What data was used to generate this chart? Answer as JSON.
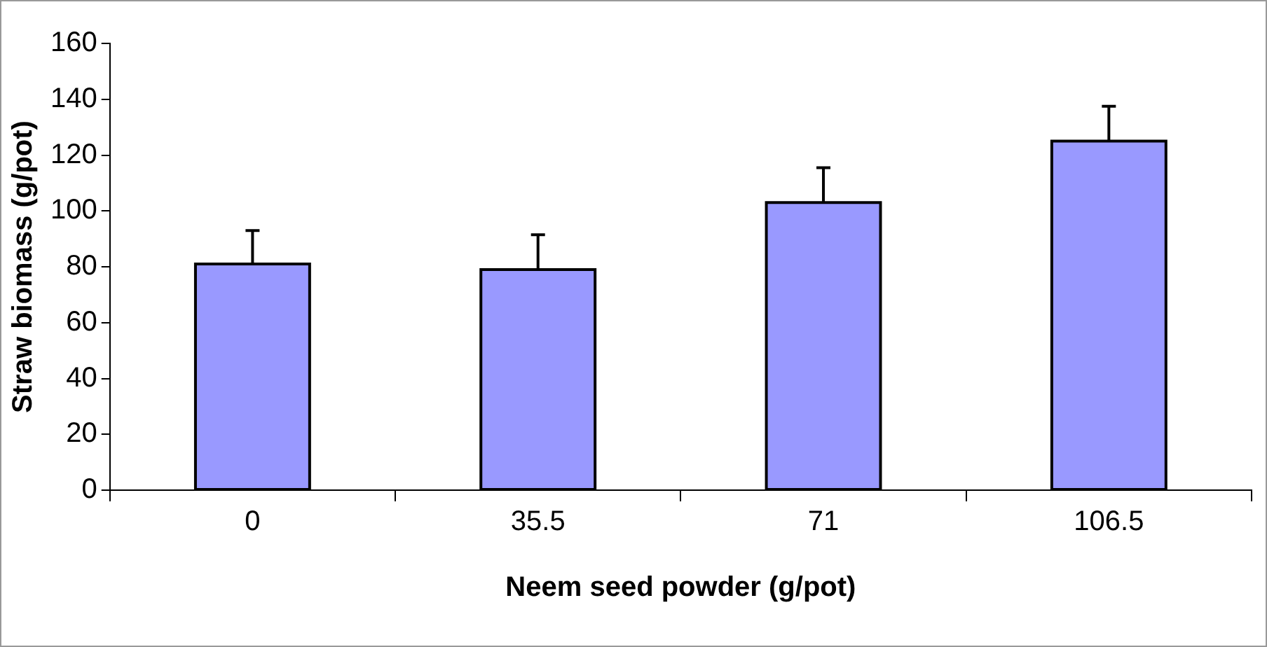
{
  "chart_data": {
    "type": "bar",
    "xlabel": "Neem seed powder (g/pot)",
    "ylabel": "Straw biomass (g/pot)",
    "categories": [
      "0",
      "35.5",
      "71",
      "106.5"
    ],
    "values": [
      81,
      79,
      103,
      125
    ],
    "errors": [
      [
        81,
        93
      ],
      [
        79,
        91.5
      ],
      [
        103,
        115.5
      ],
      [
        125,
        137.5
      ]
    ],
    "color": "#9999ff",
    "ylim": [
      0,
      160
    ],
    "yticks": [
      0,
      20,
      40,
      60,
      80,
      100,
      120,
      140,
      160
    ],
    "grid": false,
    "legend": false
  }
}
